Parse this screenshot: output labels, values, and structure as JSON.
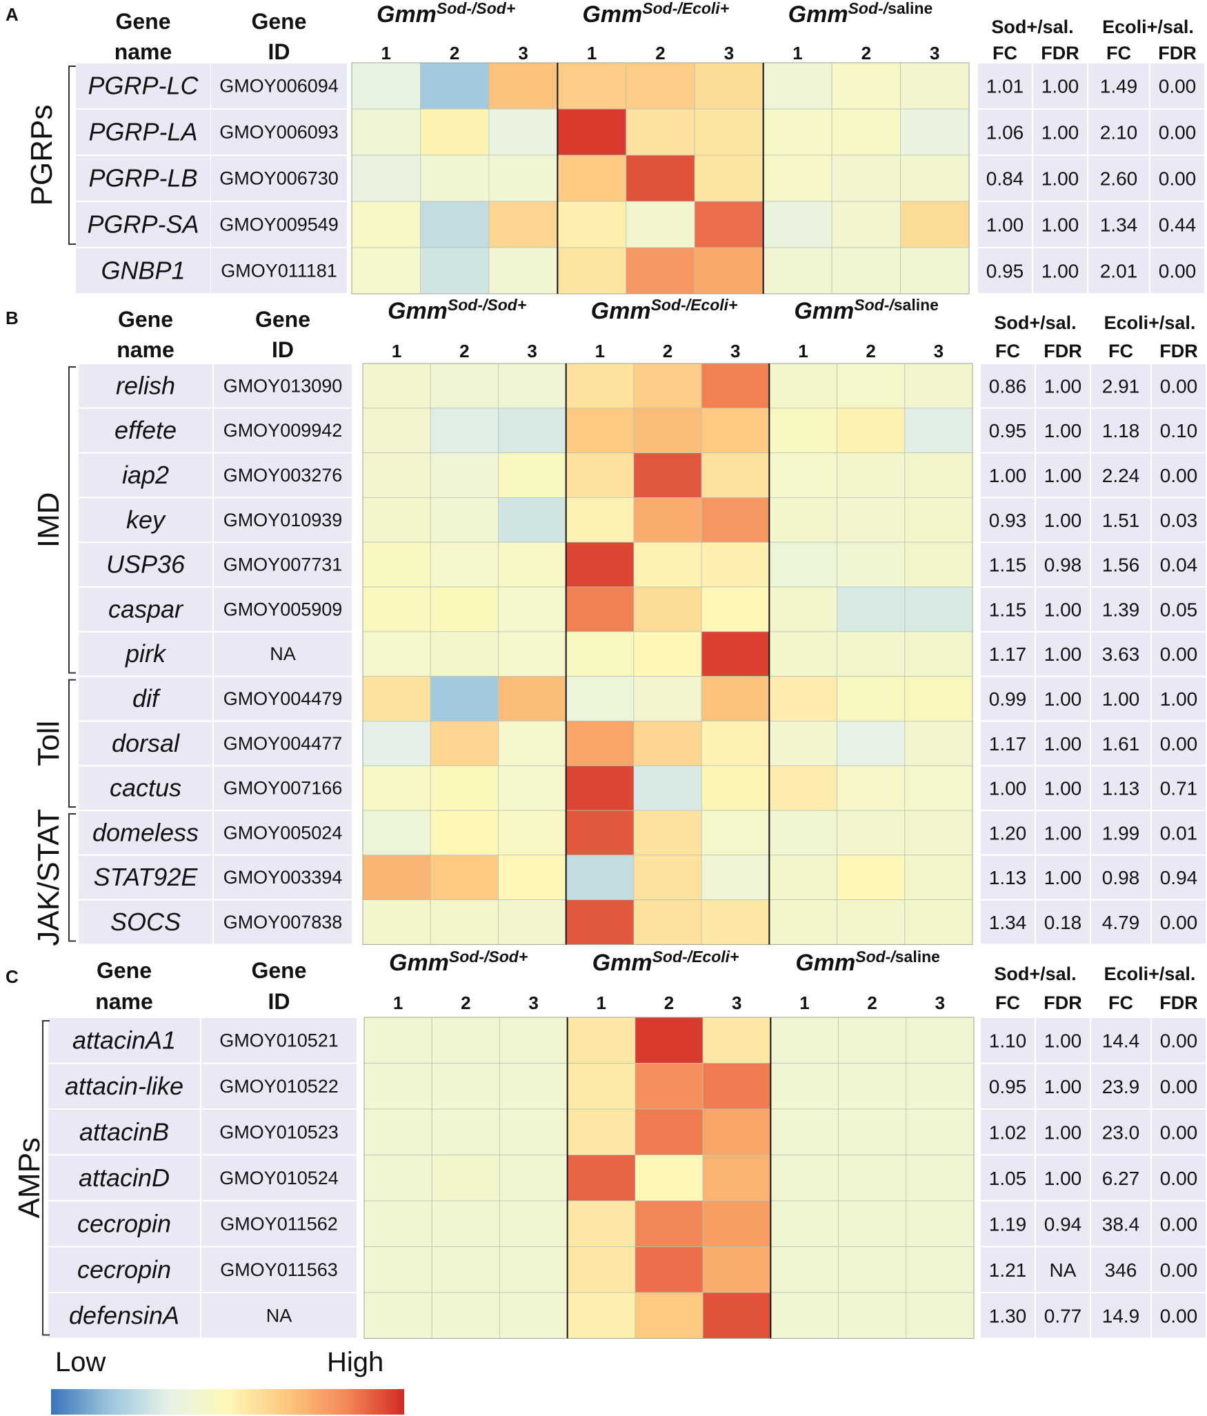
{
  "chart_data": {
    "type": "heatmap",
    "colormap": [
      "#3a74b8",
      "#9dc5de",
      "#e6f2e6",
      "#fdf8b8",
      "#fcc880",
      "#f48a58",
      "#d22a25"
    ],
    "column_headers": {
      "gene_name": [
        "Gene",
        "name"
      ],
      "gene_id": [
        "Gene",
        "ID"
      ],
      "groups": [
        {
          "base": "Gmm",
          "superscript": "Sod-/Sod+",
          "sup_normal": ""
        },
        {
          "base": "Gmm",
          "superscript": "Sod-/Ecoli+",
          "sup_normal": ""
        },
        {
          "base": "Gmm",
          "superscript": "Sod-/",
          "sup_normal": "saline"
        }
      ],
      "replicates": [
        "1",
        "2",
        "3"
      ],
      "stat_groups": [
        "Sod+/sal.",
        "Ecoli+/sal."
      ],
      "stat_columns": [
        "FC",
        "FDR",
        "FC",
        "FDR"
      ]
    },
    "panels": [
      {
        "letter": "A",
        "brackets": [
          {
            "label": "PGRPs",
            "from": 0,
            "to": 3
          }
        ],
        "genes": [
          {
            "name": "PGRP-LC",
            "id": "GMOY006094",
            "values": [
              0.35,
              0.18,
              0.68,
              0.65,
              0.65,
              0.6,
              0.4,
              0.45,
              0.42
            ],
            "stats": [
              "1.01",
              "1.00",
              "1.49",
              "0.00"
            ]
          },
          {
            "name": "PGRP-LA",
            "id": "GMOY006093",
            "values": [
              0.4,
              0.52,
              0.36,
              0.97,
              0.58,
              0.57,
              0.45,
              0.46,
              0.36
            ],
            "stats": [
              "1.06",
              "1.00",
              "2.10",
              "0.00"
            ]
          },
          {
            "name": "PGRP-LB",
            "id": "GMOY006730",
            "values": [
              0.36,
              0.41,
              0.41,
              0.66,
              0.93,
              0.57,
              0.45,
              0.42,
              0.42
            ],
            "stats": [
              "0.84",
              "1.00",
              "2.60",
              "0.00"
            ]
          },
          {
            "name": "PGRP-SA",
            "id": "GMOY009549",
            "values": [
              0.46,
              0.25,
              0.62,
              0.53,
              0.42,
              0.88,
              0.36,
              0.42,
              0.6
            ],
            "stats": [
              "1.00",
              "1.00",
              "1.34",
              "0.44"
            ]
          },
          {
            "name": "GNBP1",
            "id": "GMOY011181",
            "values": [
              0.44,
              0.28,
              0.41,
              0.57,
              0.8,
              0.75,
              0.41,
              0.41,
              0.41
            ],
            "stats": [
              "0.95",
              "1.00",
              "2.01",
              "0.00"
            ]
          }
        ]
      },
      {
        "letter": "B",
        "brackets": [
          {
            "label": "IMD",
            "from": 0,
            "to": 6
          },
          {
            "label": "Toll",
            "from": 7,
            "to": 9
          },
          {
            "label": "JAK/STAT",
            "from": 10,
            "to": 12
          }
        ],
        "genes": [
          {
            "name": "relish",
            "id": "GMOY013090",
            "values": [
              0.42,
              0.4,
              0.4,
              0.58,
              0.65,
              0.85,
              0.43,
              0.44,
              0.42
            ],
            "stats": [
              "0.86",
              "1.00",
              "2.91",
              "0.00"
            ]
          },
          {
            "name": "effete",
            "id": "GMOY009942",
            "values": [
              0.42,
              0.32,
              0.3,
              0.66,
              0.7,
              0.66,
              0.47,
              0.52,
              0.32
            ],
            "stats": [
              "0.95",
              "1.00",
              "1.18",
              "0.10"
            ]
          },
          {
            "name": "iap2",
            "id": "GMOY003276",
            "values": [
              0.42,
              0.4,
              0.47,
              0.58,
              0.92,
              0.58,
              0.44,
              0.43,
              0.43
            ],
            "stats": [
              "1.00",
              "1.00",
              "2.24",
              "0.00"
            ]
          },
          {
            "name": "key",
            "id": "GMOY010939",
            "values": [
              0.43,
              0.41,
              0.28,
              0.52,
              0.74,
              0.8,
              0.43,
              0.42,
              0.43
            ],
            "stats": [
              "0.93",
              "1.00",
              "1.51",
              "0.03"
            ]
          },
          {
            "name": "USP36",
            "id": "GMOY007731",
            "values": [
              0.47,
              0.44,
              0.46,
              0.95,
              0.52,
              0.53,
              0.38,
              0.41,
              0.43
            ],
            "stats": [
              "1.15",
              "0.98",
              "1.56",
              "0.04"
            ]
          },
          {
            "name": "caspar",
            "id": "GMOY005909",
            "values": [
              0.48,
              0.49,
              0.44,
              0.85,
              0.6,
              0.5,
              0.43,
              0.3,
              0.3
            ],
            "stats": [
              "1.15",
              "1.00",
              "1.39",
              "0.05"
            ]
          },
          {
            "name": "pirk",
            "id": "NA",
            "values": [
              0.44,
              0.43,
              0.44,
              0.47,
              0.5,
              0.96,
              0.43,
              0.43,
              0.43
            ],
            "stats": [
              "1.17",
              "1.00",
              "3.63",
              "0.00"
            ]
          },
          {
            "name": "dif",
            "id": "GMOY004479",
            "values": [
              0.58,
              0.18,
              0.7,
              0.38,
              0.42,
              0.68,
              0.54,
              0.47,
              0.48
            ],
            "stats": [
              "0.99",
              "1.00",
              "1.00",
              "1.00"
            ]
          },
          {
            "name": "dorsal",
            "id": "GMOY004477",
            "values": [
              0.33,
              0.62,
              0.44,
              0.76,
              0.62,
              0.52,
              0.42,
              0.34,
              0.42
            ],
            "stats": [
              "1.17",
              "1.00",
              "1.61",
              "0.00"
            ]
          },
          {
            "name": "cactus",
            "id": "GMOY007166",
            "values": [
              0.46,
              0.49,
              0.44,
              0.95,
              0.3,
              0.51,
              0.54,
              0.45,
              0.44
            ],
            "stats": [
              "1.00",
              "1.00",
              "1.13",
              "0.71"
            ]
          },
          {
            "name": "domeless",
            "id": "GMOY005024",
            "values": [
              0.38,
              0.5,
              0.46,
              0.92,
              0.58,
              0.44,
              0.41,
              0.42,
              0.42
            ],
            "stats": [
              "1.20",
              "1.00",
              "1.99",
              "0.01"
            ]
          },
          {
            "name": "STAT92E",
            "id": "GMOY003394",
            "values": [
              0.72,
              0.66,
              0.5,
              0.25,
              0.58,
              0.4,
              0.43,
              0.5,
              0.43
            ],
            "stats": [
              "1.13",
              "1.00",
              "0.98",
              "0.94"
            ]
          },
          {
            "name": "SOCS",
            "id": "GMOY007838",
            "values": [
              0.43,
              0.43,
              0.42,
              0.92,
              0.58,
              0.56,
              0.43,
              0.43,
              0.43
            ],
            "stats": [
              "1.34",
              "0.18",
              "4.79",
              "0.00"
            ]
          }
        ]
      },
      {
        "letter": "C",
        "brackets": [
          {
            "label": "AMPs",
            "from": 0,
            "to": 6
          }
        ],
        "genes": [
          {
            "name": "attacinA1",
            "id": "GMOY010521",
            "values": [
              0.41,
              0.41,
              0.41,
              0.56,
              0.97,
              0.56,
              0.41,
              0.41,
              0.41
            ],
            "stats": [
              "1.10",
              "1.00",
              "14.4",
              "0.00"
            ]
          },
          {
            "name": "attacin-like",
            "id": "GMOY010522",
            "values": [
              0.41,
              0.41,
              0.41,
              0.55,
              0.82,
              0.86,
              0.41,
              0.41,
              0.41
            ],
            "stats": [
              "0.95",
              "1.00",
              "23.9",
              "0.00"
            ]
          },
          {
            "name": "attacinB",
            "id": "GMOY010523",
            "values": [
              0.41,
              0.41,
              0.41,
              0.56,
              0.86,
              0.76,
              0.41,
              0.41,
              0.41
            ],
            "stats": [
              "1.02",
              "1.00",
              "23.0",
              "0.00"
            ]
          },
          {
            "name": "attacinD",
            "id": "GMOY010524",
            "values": [
              0.41,
              0.43,
              0.41,
              0.9,
              0.5,
              0.72,
              0.41,
              0.41,
              0.41
            ],
            "stats": [
              "1.05",
              "1.00",
              "6.27",
              "0.00"
            ]
          },
          {
            "name": "cecropin",
            "id": "GMOY011562",
            "values": [
              0.41,
              0.41,
              0.41,
              0.56,
              0.84,
              0.78,
              0.41,
              0.41,
              0.41
            ],
            "stats": [
              "1.19",
              "0.94",
              "38.4",
              "0.00"
            ]
          },
          {
            "name": "cecropin",
            "id": "GMOY011563",
            "values": [
              0.41,
              0.41,
              0.41,
              0.56,
              0.88,
              0.74,
              0.41,
              0.41,
              0.41
            ],
            "stats": [
              "1.21",
              "NA",
              "346",
              "0.00"
            ]
          },
          {
            "name": "defensinA",
            "id": "NA",
            "values": [
              0.41,
              0.41,
              0.41,
              0.53,
              0.66,
              0.93,
              0.41,
              0.41,
              0.41
            ],
            "stats": [
              "1.30",
              "0.77",
              "14.9",
              "0.00"
            ]
          }
        ]
      }
    ],
    "legend": {
      "low": "Low",
      "high": "High"
    }
  }
}
